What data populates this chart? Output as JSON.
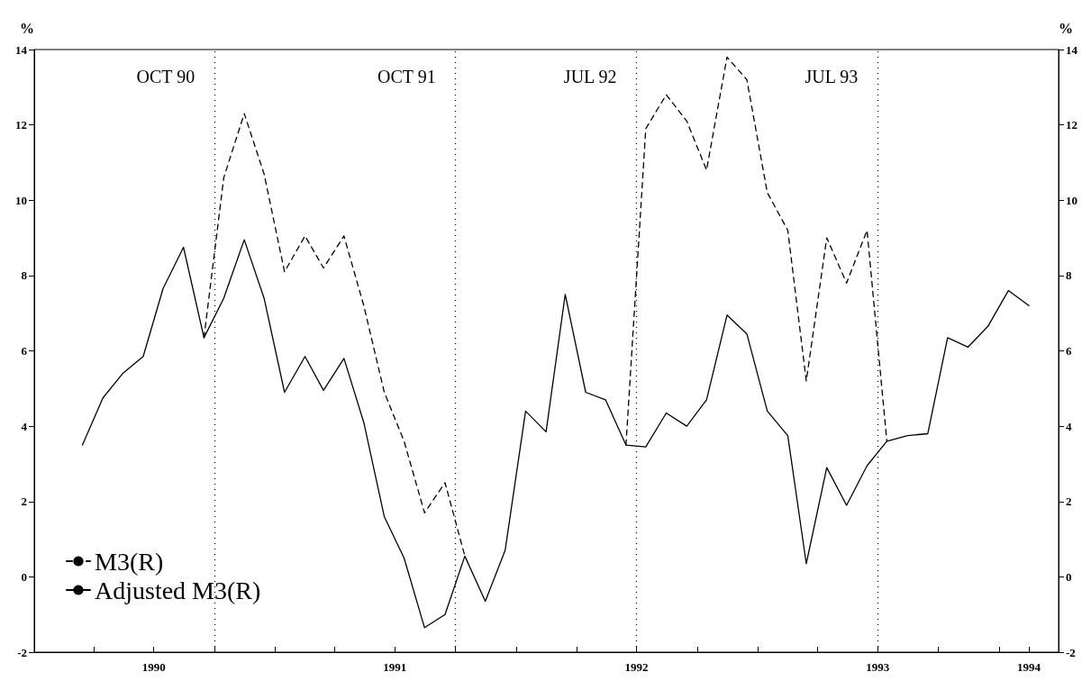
{
  "chart_data": {
    "type": "line",
    "ylabel": "%",
    "y2label": "%",
    "x": [
      "1990-03-15",
      "1990-04-15",
      "1990-05-15",
      "1990-06-15",
      "1990-07-15",
      "1990-08-15",
      "1990-09-15",
      "1990-10-15",
      "1990-11-15",
      "1990-12-15",
      "1991-01-15",
      "1991-02-15",
      "1991-03-15",
      "1991-04-15",
      "1991-05-15",
      "1991-06-15",
      "1991-07-15",
      "1991-08-15",
      "1991-09-15",
      "1991-10-15",
      "1991-11-15",
      "1991-12-15",
      "1992-01-15",
      "1992-02-15",
      "1992-03-15",
      "1992-04-15",
      "1992-05-15",
      "1992-06-15",
      "1992-07-15",
      "1992-08-15",
      "1992-09-15",
      "1992-10-15",
      "1992-11-15",
      "1992-12-15",
      "1993-01-15",
      "1993-02-15",
      "1993-03-15",
      "1993-04-15",
      "1993-05-15",
      "1993-06-15",
      "1993-07-15",
      "1993-08-15",
      "1993-09-15",
      "1993-10-15",
      "1993-11-15",
      "1993-12-15",
      "1994-01-15",
      "1994-02-15"
    ],
    "series": [
      {
        "name": "M3(R)",
        "color": "#000000",
        "line_style": "dashed",
        "values": [
          null,
          null,
          null,
          null,
          null,
          null,
          6.35,
          10.6,
          12.3,
          10.7,
          8.1,
          9.05,
          8.2,
          9.05,
          7.2,
          4.9,
          3.6,
          1.7,
          2.5,
          0.55,
          null,
          null,
          null,
          null,
          null,
          null,
          null,
          3.5,
          11.9,
          12.8,
          12.1,
          10.8,
          13.8,
          13.2,
          10.2,
          9.2,
          5.2,
          9.0,
          7.8,
          9.2,
          3.6,
          null,
          null,
          null,
          null,
          null,
          null,
          null
        ]
      },
      {
        "name": "Adjusted M3(R)",
        "color": "#000000",
        "line_style": "solid",
        "values": [
          3.5,
          4.75,
          5.4,
          5.85,
          7.65,
          8.75,
          6.35,
          7.4,
          8.95,
          7.4,
          4.9,
          5.85,
          4.95,
          5.8,
          4.1,
          1.6,
          0.5,
          -1.35,
          -1.0,
          0.55,
          -0.65,
          0.7,
          4.4,
          3.85,
          7.5,
          4.9,
          4.7,
          3.5,
          3.45,
          4.35,
          4.0,
          4.7,
          6.95,
          6.45,
          4.4,
          3.75,
          0.35,
          2.9,
          1.9,
          2.95,
          3.6,
          3.75,
          3.8,
          6.35,
          6.1,
          6.65,
          7.6,
          7.2
        ]
      }
    ],
    "xlim": [
      "1990-01-01",
      "1994-04-01"
    ],
    "xticks": [
      {
        "value": "1990-04-01",
        "label": null
      },
      {
        "value": "1990-07-01",
        "label": "1990"
      },
      {
        "value": "1990-10-01",
        "label": null
      },
      {
        "value": "1991-01-01",
        "label": null
      },
      {
        "value": "1991-04-01",
        "label": null
      },
      {
        "value": "1991-07-01",
        "label": "1991"
      },
      {
        "value": "1991-10-01",
        "label": null
      },
      {
        "value": "1992-01-01",
        "label": null
      },
      {
        "value": "1992-04-01",
        "label": null
      },
      {
        "value": "1992-07-01",
        "label": "1992"
      },
      {
        "value": "1992-10-01",
        "label": null
      },
      {
        "value": "1993-01-01",
        "label": null
      },
      {
        "value": "1993-04-01",
        "label": null
      },
      {
        "value": "1993-07-01",
        "label": "1993"
      },
      {
        "value": "1993-10-01",
        "label": null
      },
      {
        "value": "1994-01-01",
        "label": null
      },
      {
        "value": "1994-02-15",
        "label": "1994"
      }
    ],
    "ylim": [
      -2,
      14
    ],
    "yticks": [
      -2,
      0,
      2,
      4,
      6,
      8,
      10,
      12,
      14
    ],
    "y2lim": [
      -2,
      14
    ],
    "y2ticks": [
      -2,
      0,
      2,
      4,
      6,
      8,
      10,
      12,
      14
    ],
    "ref_lines": [
      {
        "axis": "x",
        "value": "1990-10-01",
        "label": "OCT 90",
        "line_style": "dotted",
        "color": "#000000"
      },
      {
        "axis": "x",
        "value": "1991-10-01",
        "label": "OCT 91",
        "line_style": "dotted",
        "color": "#000000"
      },
      {
        "axis": "x",
        "value": "1992-07-01",
        "label": "JUL 92",
        "line_style": "dotted",
        "color": "#000000"
      },
      {
        "axis": "x",
        "value": "1993-07-01",
        "label": "JUL 93",
        "line_style": "dotted",
        "color": "#000000"
      }
    ],
    "grid": false,
    "legend": "bottom left",
    "marker": "none"
  }
}
